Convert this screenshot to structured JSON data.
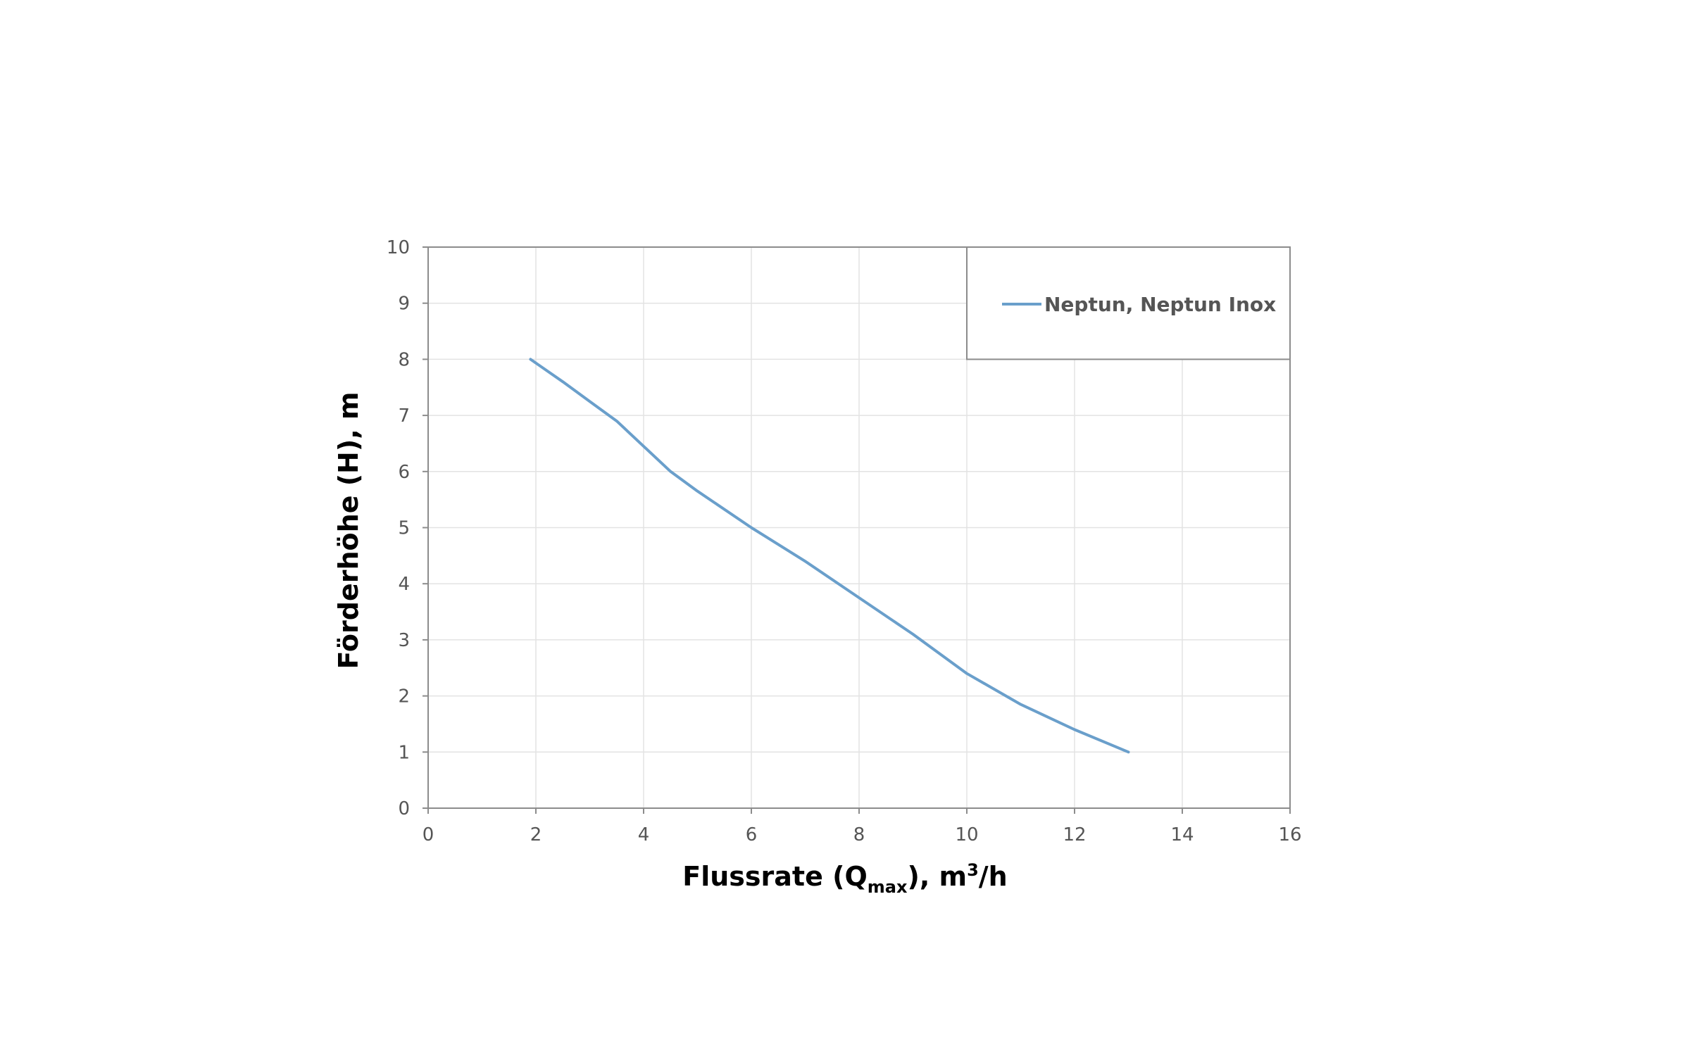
{
  "chart_data": {
    "type": "line",
    "xlabel": {
      "main": "Flussrate (Q",
      "sub": "max",
      "after": "), m",
      "sup": "3",
      "end": "/h"
    },
    "ylabel": "Förderhöhe (H), m",
    "xlim": [
      0,
      16
    ],
    "ylim": [
      0,
      10
    ],
    "x_ticks": [
      0,
      2,
      4,
      6,
      8,
      10,
      12,
      14,
      16
    ],
    "y_ticks": [
      0,
      1,
      2,
      3,
      4,
      5,
      6,
      7,
      8,
      9,
      10
    ],
    "grid": true,
    "legend_position": "top-right",
    "series": [
      {
        "name": "Neptun, Neptun Inox",
        "color": "#6a9fcb",
        "x": [
          1.9,
          2.5,
          3.0,
          3.5,
          4.0,
          4.5,
          5.0,
          6.0,
          7.0,
          8.0,
          9.0,
          10.0,
          11.0,
          12.0,
          13.0
        ],
        "y": [
          8.0,
          7.6,
          7.25,
          6.9,
          6.45,
          6.0,
          5.65,
          5.0,
          4.4,
          3.75,
          3.1,
          2.4,
          1.85,
          1.4,
          1.0
        ]
      }
    ]
  }
}
